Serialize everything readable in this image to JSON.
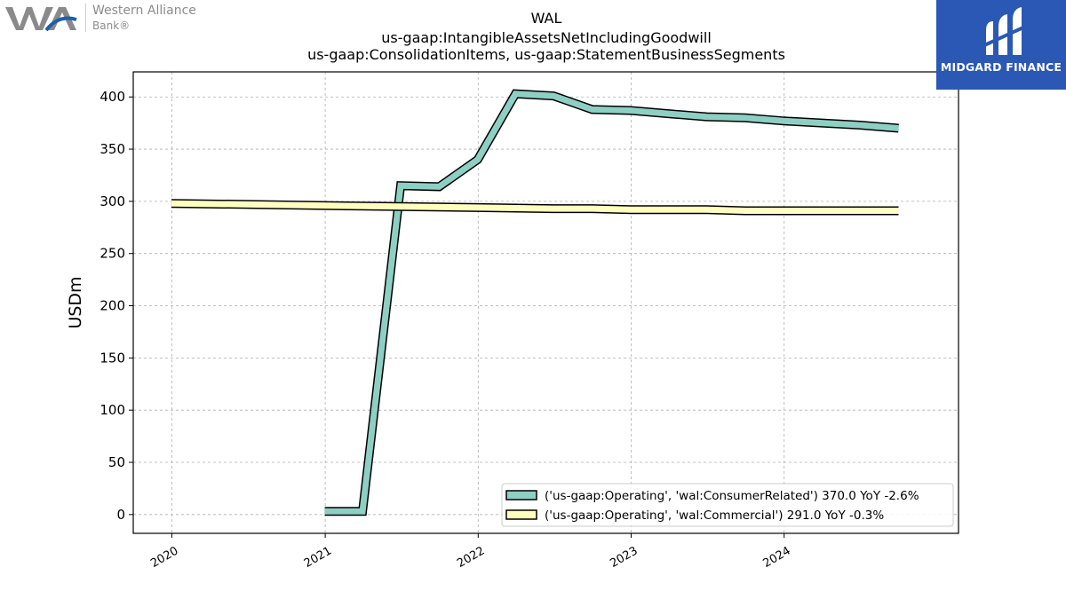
{
  "header": {
    "title_line1": "WAL",
    "title_line2": "us-gaap:IntangibleAssetsNetIncludingGoodwill",
    "title_line3": "us-gaap:ConsolidationItems, us-gaap:StatementBusinessSegments"
  },
  "logos": {
    "left_name": "Western Alliance",
    "left_sub": "Bank®",
    "right_name": "MIDGARD FINANCE",
    "right_bg": "#2a58b4"
  },
  "chart_data": {
    "type": "line",
    "title": "WAL\nus-gaap:IntangibleAssetsNetIncludingGoodwill\nus-gaap:ConsolidationItems, us-gaap:StatementBusinessSegments",
    "xlabel": "",
    "ylabel": "USDm",
    "xlim": [
      "2019-10-01",
      "2025-02-20"
    ],
    "ylim": [
      -18,
      424
    ],
    "x_ticks": [
      "2020",
      "2021",
      "2022",
      "2023",
      "2024"
    ],
    "y_ticks": [
      0,
      50,
      100,
      150,
      200,
      250,
      300,
      350,
      400
    ],
    "grid": true,
    "legend_position": "lower-right",
    "series": [
      {
        "name": "('us-gaap:Operating', 'wal:ConsumerRelated') 370.0 YoY -2.6%",
        "color": "#8ecfc3",
        "points": [
          [
            "2020-12-31",
            3
          ],
          [
            "2021-03-31",
            3
          ],
          [
            "2021-06-30",
            315
          ],
          [
            "2021-09-30",
            314
          ],
          [
            "2021-12-31",
            340
          ],
          [
            "2022-03-31",
            403
          ],
          [
            "2022-06-30",
            401
          ],
          [
            "2022-09-30",
            388
          ],
          [
            "2022-12-31",
            387
          ],
          [
            "2023-03-31",
            384
          ],
          [
            "2023-06-30",
            381
          ],
          [
            "2023-09-30",
            380
          ],
          [
            "2023-12-31",
            377
          ],
          [
            "2024-03-31",
            375
          ],
          [
            "2024-06-30",
            373
          ],
          [
            "2024-09-30",
            370
          ]
        ]
      },
      {
        "name": "('us-gaap:Operating', 'wal:Commercial') 291.0 YoY -0.3%",
        "color": "#ffffc0",
        "points": [
          [
            "2019-12-31",
            298
          ],
          [
            "2020-12-31",
            296
          ],
          [
            "2021-06-30",
            295
          ],
          [
            "2021-12-31",
            294
          ],
          [
            "2022-06-30",
            293
          ],
          [
            "2022-09-30",
            293
          ],
          [
            "2022-12-31",
            292
          ],
          [
            "2023-06-30",
            292
          ],
          [
            "2023-09-30",
            291
          ],
          [
            "2023-12-31",
            291
          ],
          [
            "2024-03-31",
            291
          ],
          [
            "2024-06-30",
            291
          ],
          [
            "2024-09-30",
            291
          ]
        ]
      }
    ]
  }
}
